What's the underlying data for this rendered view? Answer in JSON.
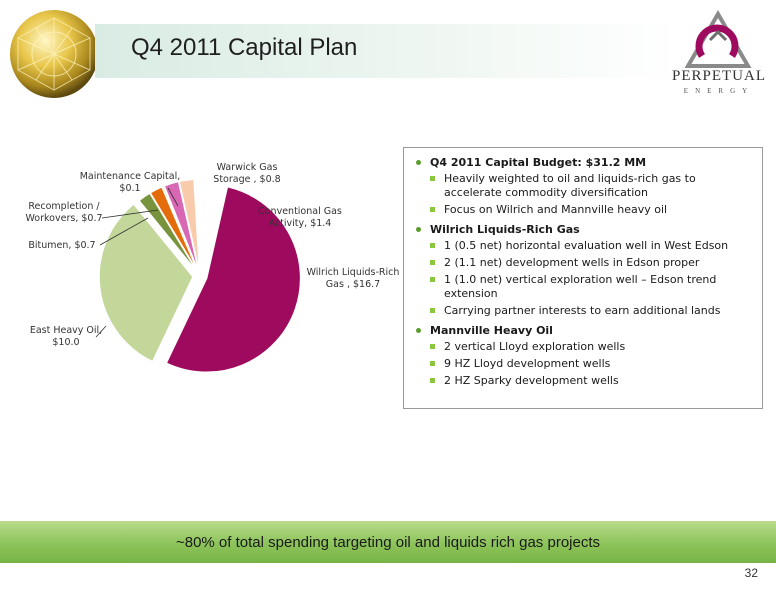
{
  "slide": {
    "title": "Q4 2011 Capital Plan",
    "page_number": "32",
    "banner": "~80% of total spending targeting oil and liquids rich gas projects",
    "logo_name": "PERPETUAL",
    "logo_sub": "ENERGY"
  },
  "chart_data": {
    "type": "pie",
    "slices": [
      {
        "label": "Warwick Gas Storage",
        "value": 0.8,
        "display": "Warwick Gas Storage , $0.8",
        "color": "#f8cbad"
      },
      {
        "label": "Conventional Gas Activity",
        "value": 1.4,
        "display": "Conventional Gas Activity,  $1.4",
        "color": "#ffffff"
      },
      {
        "label": "Wilrich Liquids-Rich Gas",
        "value": 16.7,
        "display": "Wilrich Liquids-Rich Gas ,  $16.7",
        "color": "#9e0b5e"
      },
      {
        "label": "East Heavy Oil",
        "value": 10.0,
        "display": "East Heavy Oil, $10.0",
        "color": "#c4d79b"
      },
      {
        "label": "Bitumen",
        "value": 0.7,
        "display": "Bitumen,  $0.7",
        "color": "#77933c"
      },
      {
        "label": "Recompletion / Workovers",
        "value": 0.7,
        "display": "Recompletion / Workovers,  $0.7",
        "color": "#e46c0a"
      },
      {
        "label": "Maintenance Capital",
        "value": 0.1,
        "display": "Maintenance Capital, $0.1",
        "color": "#fac090"
      },
      {
        "label": "Q4 2011 Capital Budget",
        "value": 0.8,
        "display": "",
        "color": "#d867b4"
      }
    ],
    "labels": [
      {
        "lines": [
          "Warwick Gas",
          "Storage ,  $0.8"
        ]
      },
      {
        "lines": [
          "Conventional Gas",
          "Activity,  $1.4"
        ]
      },
      {
        "lines": [
          "Wilrich Liquids-Rich",
          "Gas ,  $16.7"
        ]
      },
      {
        "lines": [
          "East Heavy Oil,",
          "$10.0"
        ]
      },
      {
        "lines": [
          "Bitumen,  $0.7"
        ]
      },
      {
        "lines": [
          "Recompletion /",
          "Workovers,  $0.7"
        ]
      },
      {
        "lines": [
          "Maintenance Capital,",
          "$0.1"
        ]
      }
    ]
  },
  "bullets": [
    {
      "heading": "Q4 2011 Capital Budget:  $31.2 MM",
      "items": [
        "Heavily weighted to oil and liquids-rich gas to accelerate commodity diversification",
        "Focus on Wilrich and Mannville heavy oil"
      ]
    },
    {
      "heading": "Wilrich Liquids-Rich Gas",
      "items": [
        "1 (0.5 net) horizontal evaluation well in West Edson",
        "2 (1.1 net) development wells in Edson proper",
        "1 (1.0 net) vertical exploration well – Edson trend extension",
        "Carrying partner interests to earn additional lands"
      ]
    },
    {
      "heading": "Mannville Heavy Oil",
      "items": [
        "2 vertical Lloyd exploration wells",
        "9 HZ Lloyd development wells",
        "2 HZ Sparky development wells"
      ]
    }
  ],
  "colors": {
    "accent_green": "#8cc63f",
    "title_band": "#d9ece4",
    "wilrich": "#9e0b5e"
  }
}
